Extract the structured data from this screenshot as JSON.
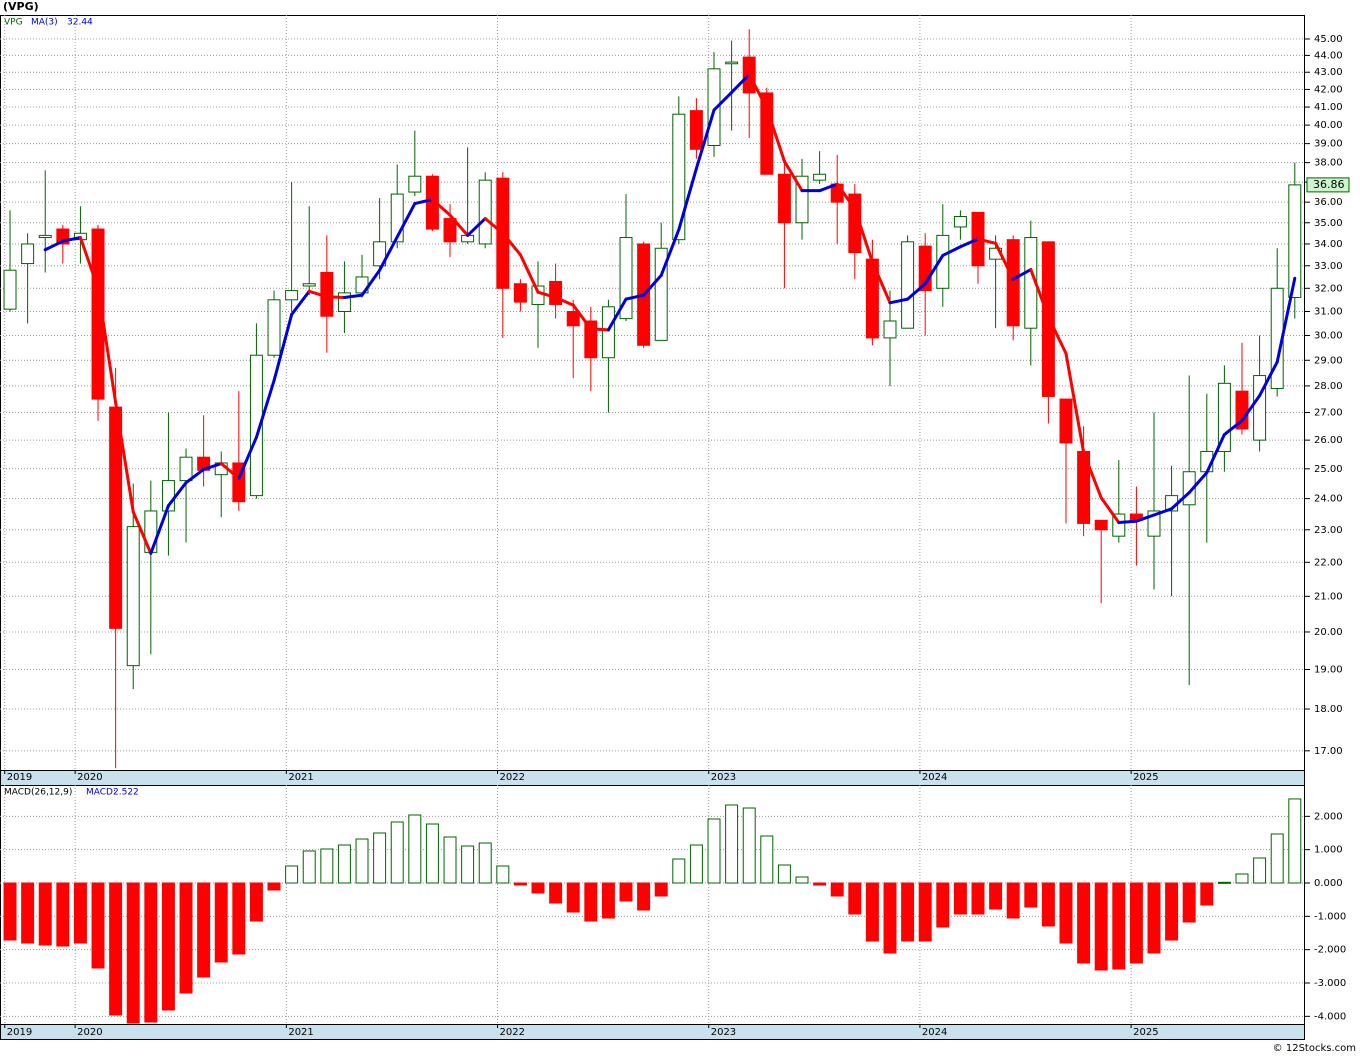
{
  "chart_data": [
    {
      "type": "candlestick",
      "title": "(VPG)",
      "xlim": [
        -0.57,
        73.58
      ],
      "xticks": [
        {
          "value": -0.3,
          "label": "2019"
        },
        {
          "value": 3.7,
          "label": "2020"
        },
        {
          "value": 15.7,
          "label": "2021"
        },
        {
          "value": 27.7,
          "label": "2022"
        },
        {
          "value": 39.7,
          "label": "2023"
        },
        {
          "value": 51.7,
          "label": "2024"
        },
        {
          "value": 63.7,
          "label": "2025"
        }
      ],
      "ylim": [
        16.56,
        46.5
      ],
      "log_scale": true,
      "grid": true,
      "yticks": [
        {
          "value": 17,
          "label": "17.00"
        },
        {
          "value": 18,
          "label": "18.00"
        },
        {
          "value": 19,
          "label": "19.00"
        },
        {
          "value": 20,
          "label": "20.00"
        },
        {
          "value": 21,
          "label": "21.00"
        },
        {
          "value": 22,
          "label": "22.00"
        },
        {
          "value": 23,
          "label": "23.00"
        },
        {
          "value": 24,
          "label": "24.00"
        },
        {
          "value": 25,
          "label": "25.00"
        },
        {
          "value": 26,
          "label": "26.00"
        },
        {
          "value": 27,
          "label": "27.00"
        },
        {
          "value": 28,
          "label": "28.00"
        },
        {
          "value": 29,
          "label": "29.00"
        },
        {
          "value": 30,
          "label": "30.00"
        },
        {
          "value": 31,
          "label": "31.00"
        },
        {
          "value": 32,
          "label": "32.00"
        },
        {
          "value": 33,
          "label": "33.00"
        },
        {
          "value": 34,
          "label": "34.00"
        },
        {
          "value": 35,
          "label": "35.00"
        },
        {
          "value": 36,
          "label": "36.00"
        },
        {
          "value": 37,
          "label": "37.00"
        },
        {
          "value": 38,
          "label": "38.00"
        },
        {
          "value": 39,
          "label": "39.00"
        },
        {
          "value": 40,
          "label": "40.00"
        },
        {
          "value": 41,
          "label": "41.00"
        },
        {
          "value": 42,
          "label": "42.00"
        },
        {
          "value": 43,
          "label": "43.00"
        },
        {
          "value": 44,
          "label": "44.00"
        },
        {
          "value": 45,
          "label": "45.00"
        }
      ],
      "series": [
        {
          "name": "VPG",
          "color": "#006400",
          "down_color": "#ff0000",
          "open": [
            31.1,
            33.1,
            34.3,
            34.7,
            34.2,
            34.7,
            27.2,
            19.1,
            22.3,
            23.6,
            24.6,
            25.4,
            24.8,
            25.2,
            24.1,
            29.2,
            31.5,
            32.1,
            32.7,
            31.0,
            31.8,
            33.0,
            34.1,
            36.5,
            37.3,
            35.2,
            34.1,
            34.0,
            37.2,
            32.2,
            31.3,
            32.3,
            31.0,
            30.6,
            29.1,
            30.7,
            34.0,
            29.8,
            34.2,
            40.8,
            38.9,
            43.5,
            43.9,
            41.8,
            37.4,
            35.0,
            37.1,
            36.9,
            36.4,
            33.3,
            29.9,
            30.3,
            33.9,
            32.0,
            34.8,
            35.5,
            33.3,
            34.2,
            30.3,
            34.1,
            27.5,
            25.6,
            23.3,
            22.8,
            23.5,
            22.8,
            23.6,
            23.8,
            24.9,
            25.6,
            27.8,
            26.0,
            27.9,
            31.6
          ],
          "high": [
            35.6,
            34.5,
            37.6,
            34.9,
            35.8,
            34.9,
            28.7,
            24.5,
            24.6,
            27.0,
            25.7,
            26.9,
            25.6,
            27.8,
            30.5,
            31.9,
            37.0,
            35.8,
            34.4,
            33.2,
            33.5,
            36.2,
            37.9,
            39.7,
            37.4,
            35.9,
            38.8,
            37.5,
            37.5,
            32.4,
            33.2,
            33.1,
            31.5,
            31.2,
            31.5,
            36.4,
            34.1,
            35.0,
            41.6,
            41.5,
            44.2,
            44.9,
            45.6,
            42.1,
            38.2,
            38.2,
            38.6,
            38.4,
            36.9,
            34.2,
            31.9,
            34.4,
            34.5,
            35.9,
            35.6,
            35.5,
            34.4,
            34.4,
            35.1,
            34.1,
            27.5,
            26.5,
            23.3,
            25.3,
            24.4,
            27.0,
            25.1,
            28.4,
            27.7,
            28.8,
            29.7,
            30.0,
            33.8,
            38.0
          ],
          "low": [
            31.0,
            30.5,
            32.7,
            33.1,
            33.1,
            26.7,
            16.6,
            18.5,
            19.4,
            22.2,
            22.6,
            24.4,
            23.4,
            23.6,
            24.0,
            29.1,
            31.0,
            31.7,
            29.3,
            30.1,
            31.6,
            32.4,
            33.8,
            36.3,
            34.6,
            33.4,
            34.0,
            33.8,
            29.9,
            31.0,
            29.5,
            30.7,
            28.3,
            27.8,
            27.0,
            30.6,
            29.5,
            29.8,
            34.0,
            38.2,
            38.3,
            39.7,
            39.3,
            37.4,
            32.0,
            34.2,
            36.9,
            34.0,
            32.4,
            29.6,
            28.0,
            30.3,
            30.0,
            31.2,
            34.2,
            32.2,
            30.3,
            29.8,
            28.8,
            26.6,
            23.2,
            22.8,
            20.8,
            22.6,
            21.9,
            21.2,
            21.0,
            18.6,
            22.6,
            24.9,
            26.2,
            25.6,
            27.6,
            30.7
          ],
          "close": [
            32.8,
            34.0,
            34.4,
            34.0,
            34.5,
            27.5,
            20.1,
            23.1,
            23.6,
            24.6,
            25.4,
            24.95,
            25.2,
            23.9,
            29.2,
            31.5,
            31.9,
            32.2,
            30.8,
            31.8,
            32.5,
            34.1,
            36.4,
            37.3,
            34.7,
            34.1,
            34.4,
            37.1,
            32.0,
            31.4,
            32.1,
            31.3,
            30.4,
            29.1,
            31.2,
            34.3,
            29.6,
            33.8,
            40.6,
            38.7,
            43.2,
            43.6,
            41.8,
            37.4,
            35.0,
            37.3,
            37.4,
            36.0,
            33.6,
            29.9,
            30.6,
            34.1,
            31.9,
            34.4,
            35.3,
            33.0,
            33.8,
            30.4,
            34.3,
            27.6,
            25.9,
            23.2,
            23.0,
            23.5,
            23.3,
            23.6,
            24.1,
            24.9,
            25.6,
            28.1,
            26.4,
            28.4,
            32.0,
            36.86
          ]
        },
        {
          "name": "MA(3)",
          "type": "line",
          "color": "#0000dd",
          "down_color": "#ff0000",
          "values": [
            null,
            null,
            33.73,
            34.13,
            34.3,
            32.0,
            27.37,
            23.57,
            22.27,
            23.77,
            24.53,
            24.98,
            25.18,
            24.68,
            26.1,
            28.2,
            30.87,
            31.87,
            31.63,
            31.6,
            31.7,
            32.8,
            34.33,
            35.93,
            36.13,
            35.37,
            34.4,
            35.2,
            34.5,
            33.5,
            31.83,
            31.6,
            31.27,
            30.27,
            30.23,
            31.53,
            31.7,
            32.57,
            34.67,
            37.7,
            40.83,
            41.83,
            42.87,
            40.93,
            38.07,
            36.57,
            36.57,
            36.9,
            35.67,
            33.17,
            31.37,
            31.53,
            32.2,
            33.47,
            33.87,
            34.23,
            34.03,
            32.4,
            32.83,
            30.77,
            29.27,
            25.57,
            24.03,
            23.23,
            23.27,
            23.47,
            23.67,
            24.2,
            24.87,
            26.2,
            26.7,
            27.63,
            28.93,
            32.44
          ]
        }
      ]
    },
    {
      "type": "bar",
      "xlim": [
        -0.57,
        73.58
      ],
      "xticks": [
        {
          "value": -0.3,
          "label": "2019"
        },
        {
          "value": 3.7,
          "label": "2020"
        },
        {
          "value": 15.7,
          "label": "2021"
        },
        {
          "value": 27.7,
          "label": "2022"
        },
        {
          "value": 39.7,
          "label": "2023"
        },
        {
          "value": 51.7,
          "label": "2024"
        },
        {
          "value": 63.7,
          "label": "2025"
        }
      ],
      "ylim": [
        -4.23,
        2.94
      ],
      "grid": true,
      "yticks": [
        {
          "value": 2,
          "label": "2.000"
        },
        {
          "value": 1,
          "label": "1.000"
        },
        {
          "value": 0,
          "label": "0.000"
        },
        {
          "value": -1,
          "label": "-1.000"
        },
        {
          "value": -2,
          "label": "-2.000"
        },
        {
          "value": -3,
          "label": "-3.000"
        },
        {
          "value": -4,
          "label": "-4.000"
        }
      ],
      "series": [
        {
          "name": "MACD(26,12,9)",
          "current_label": "MACD:",
          "color": "#006400",
          "down_color": "#ff0000",
          "values": [
            -1.71,
            -1.8,
            -1.86,
            -1.89,
            -1.8,
            -2.55,
            -3.96,
            -4.2,
            -4.17,
            -3.81,
            -3.3,
            -2.82,
            -2.37,
            -2.13,
            -1.14,
            -0.21,
            0.51,
            0.96,
            1.02,
            1.14,
            1.32,
            1.5,
            1.83,
            2.04,
            1.77,
            1.38,
            1.11,
            1.2,
            0.51,
            -0.06,
            -0.3,
            -0.6,
            -0.87,
            -1.14,
            -1.05,
            -0.54,
            -0.81,
            -0.39,
            0.72,
            1.14,
            1.92,
            2.34,
            2.25,
            1.41,
            0.54,
            0.18,
            -0.06,
            -0.39,
            -0.93,
            -1.74,
            -2.1,
            -1.74,
            -1.74,
            -1.32,
            -0.93,
            -0.93,
            -0.78,
            -1.05,
            -0.72,
            -1.29,
            -1.8,
            -2.4,
            -2.61,
            -2.58,
            -2.4,
            -2.1,
            -1.71,
            -1.17,
            -0.66,
            0.02,
            0.27,
            0.75,
            1.47,
            2.522
          ]
        }
      ]
    }
  ],
  "footer": "© 12Stocks.com"
}
